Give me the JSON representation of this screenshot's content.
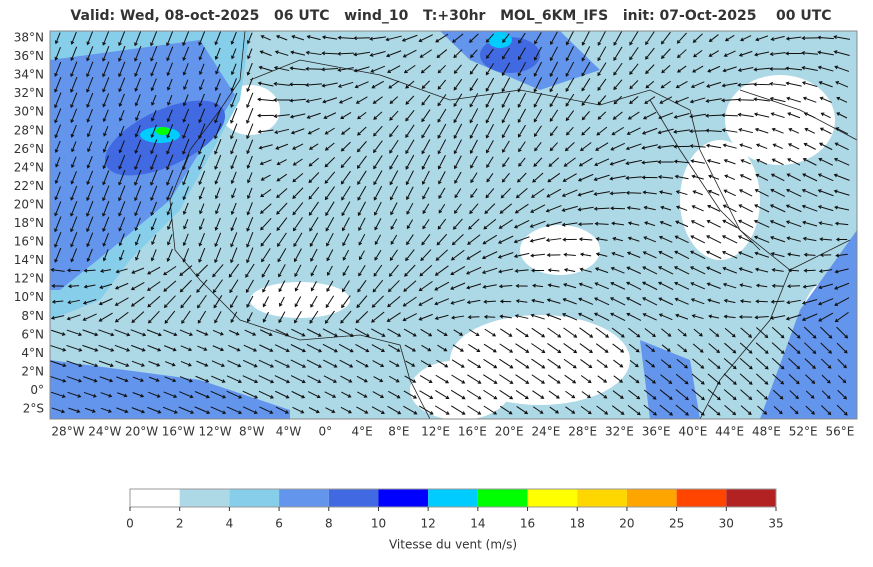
{
  "title": "Valid: Wed, 08-oct-2025   06 UTC   wind_10   T:+30hr   MOL_6KM_IFS   init: 07-Oct-2025    00 UTC",
  "lat_labels": [
    "38°N",
    "36°N",
    "34°N",
    "32°N",
    "30°N",
    "28°N",
    "26°N",
    "24°N",
    "22°N",
    "20°N",
    "18°N",
    "16°N",
    "14°N",
    "12°N",
    "10°N",
    "8°N",
    "6°N",
    "4°N",
    "2°N",
    "0°",
    "2°S"
  ],
  "lon_labels": [
    "28°W",
    "24°W",
    "20°W",
    "16°W",
    "12°W",
    "8°W",
    "4°W",
    "0°",
    "4°E",
    "8°E",
    "12°E",
    "16°E",
    "20°E",
    "24°E",
    "28°E",
    "32°E",
    "36°E",
    "40°E",
    "44°E",
    "48°E",
    "52°E",
    "56°E"
  ],
  "colorbar": {
    "ticks": [
      0,
      2,
      4,
      6,
      8,
      10,
      12,
      14,
      16,
      18,
      20,
      25,
      30,
      35
    ],
    "colors": [
      "#ffffff",
      "#add8e6",
      "#87ceeb",
      "#6495ed",
      "#4169e1",
      "#0000ff",
      "#00ccff",
      "#00ff00",
      "#ffff00",
      "#ffd700",
      "#ffa500",
      "#ff4500",
      "#b22222"
    ],
    "label": "Vitesse du vent (m/s)"
  }
}
